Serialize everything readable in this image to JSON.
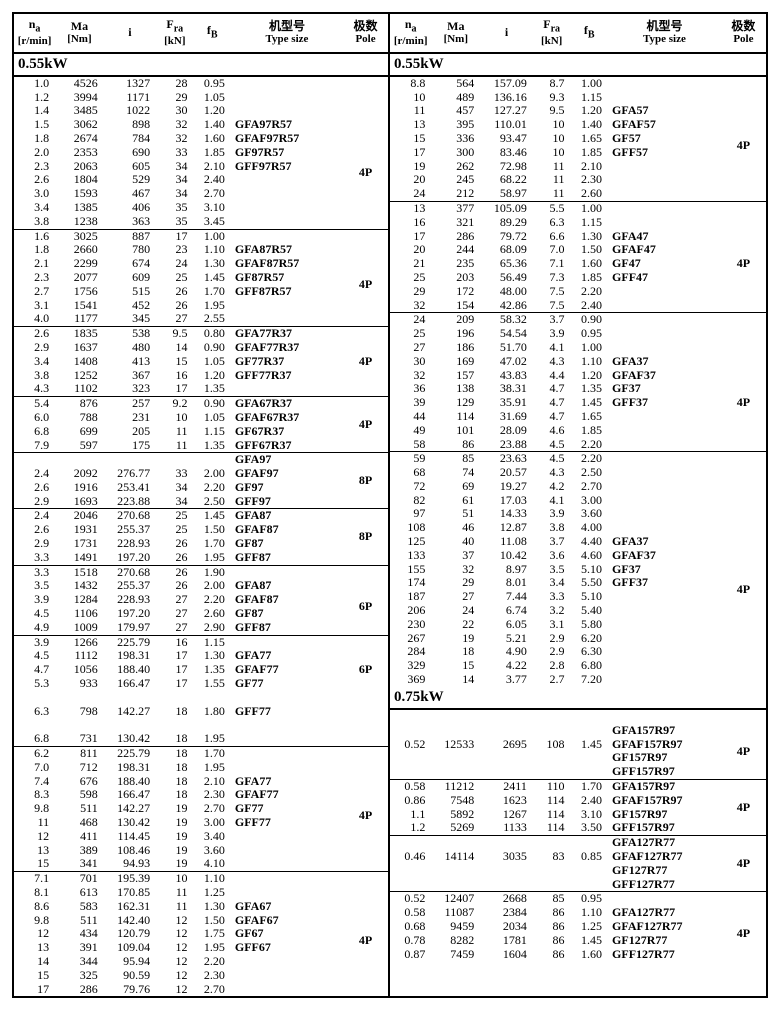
{
  "headers": {
    "na": {
      "sym": "n",
      "sub": "a",
      "unit": "[r/min]"
    },
    "ma": {
      "sym": "Ma",
      "unit": "[Nm]"
    },
    "i": {
      "sym": "i"
    },
    "fra": {
      "sym": "F",
      "sub": "ra",
      "unit": "[kN]"
    },
    "fb": {
      "sym": "f",
      "sub": "B"
    },
    "ts": {
      "cn": "机型号",
      "en": "Type size"
    },
    "pole": {
      "cn": "极数",
      "en": "Pole"
    }
  },
  "left": [
    {
      "kw": "0.55kW"
    },
    {
      "na": "1.0",
      "ma": "4526",
      "i": "1327",
      "fra": "28",
      "fb": "0.95"
    },
    {
      "na": "1.2",
      "ma": "3994",
      "i": "1171",
      "fra": "29",
      "fb": "1.05"
    },
    {
      "na": "1.4",
      "ma": "3485",
      "i": "1022",
      "fra": "30",
      "fb": "1.20"
    },
    {
      "na": "1.5",
      "ma": "3062",
      "i": "898",
      "fra": "32",
      "fb": "1.40",
      "ts": "GFA97R57",
      "pole": "4P",
      "span": 8
    },
    {
      "na": "1.8",
      "ma": "2674",
      "i": "784",
      "fra": "32",
      "fb": "1.60",
      "ts": "GFAF97R57"
    },
    {
      "na": "2.0",
      "ma": "2353",
      "i": "690",
      "fra": "33",
      "fb": "1.85",
      "ts": "GF97R57"
    },
    {
      "na": "2.3",
      "ma": "2063",
      "i": "605",
      "fra": "34",
      "fb": "2.10",
      "ts": "GFF97R57"
    },
    {
      "na": "2.6",
      "ma": "1804",
      "i": "529",
      "fra": "34",
      "fb": "2.40"
    },
    {
      "na": "3.0",
      "ma": "1593",
      "i": "467",
      "fra": "34",
      "fb": "2.70"
    },
    {
      "na": "3.4",
      "ma": "1385",
      "i": "406",
      "fra": "35",
      "fb": "3.10"
    },
    {
      "na": "3.8",
      "ma": "1238",
      "i": "363",
      "fra": "35",
      "fb": "3.45"
    },
    {
      "sep": true,
      "na": "1.6",
      "ma": "3025",
      "i": "887",
      "fra": "17",
      "fb": "1.00"
    },
    {
      "na": "1.8",
      "ma": "2660",
      "i": "780",
      "fra": "23",
      "fb": "1.10",
      "ts": "GFA87R57",
      "pole": "4P",
      "span": 6
    },
    {
      "na": "2.1",
      "ma": "2299",
      "i": "674",
      "fra": "24",
      "fb": "1.30",
      "ts": "GFAF87R57"
    },
    {
      "na": "2.3",
      "ma": "2077",
      "i": "609",
      "fra": "25",
      "fb": "1.45",
      "ts": "GF87R57"
    },
    {
      "na": "2.7",
      "ma": "1756",
      "i": "515",
      "fra": "26",
      "fb": "1.70",
      "ts": "GFF87R57"
    },
    {
      "na": "3.1",
      "ma": "1541",
      "i": "452",
      "fra": "26",
      "fb": "1.95"
    },
    {
      "na": "4.0",
      "ma": "1177",
      "i": "345",
      "fra": "27",
      "fb": "2.55"
    },
    {
      "sep": true,
      "na": "2.6",
      "ma": "1835",
      "i": "538",
      "fra": "9.5",
      "fb": "0.80",
      "ts": "GFA77R37",
      "pole": "4P",
      "span": 5
    },
    {
      "na": "2.9",
      "ma": "1637",
      "i": "480",
      "fra": "14",
      "fb": "0.90",
      "ts": "GFAF77R37"
    },
    {
      "na": "3.4",
      "ma": "1408",
      "i": "413",
      "fra": "15",
      "fb": "1.05",
      "ts": "GF77R37"
    },
    {
      "na": "3.8",
      "ma": "1252",
      "i": "367",
      "fra": "16",
      "fb": "1.20",
      "ts": "GFF77R37"
    },
    {
      "na": "4.3",
      "ma": "1102",
      "i": "323",
      "fra": "17",
      "fb": "1.35"
    },
    {
      "sep": true,
      "na": "5.4",
      "ma": "876",
      "i": "257",
      "fra": "9.2",
      "fb": "0.90",
      "ts": "GFA67R37",
      "pole": "4P",
      "span": 4
    },
    {
      "na": "6.0",
      "ma": "788",
      "i": "231",
      "fra": "10",
      "fb": "1.05",
      "ts": "GFAF67R37"
    },
    {
      "na": "6.8",
      "ma": "699",
      "i": "205",
      "fra": "11",
      "fb": "1.15",
      "ts": "GF67R37"
    },
    {
      "na": "7.9",
      "ma": "597",
      "i": "175",
      "fra": "11",
      "fb": "1.35",
      "ts": "GFF67R37"
    },
    {
      "sep": true,
      "ts": "GFA97",
      "pole": "8P",
      "span": 4
    },
    {
      "na": "2.4",
      "ma": "2092",
      "i": "276.77",
      "fra": "33",
      "fb": "2.00",
      "ts": "GFAF97"
    },
    {
      "na": "2.6",
      "ma": "1916",
      "i": "253.41",
      "fra": "34",
      "fb": "2.20",
      "ts": "GF97"
    },
    {
      "na": "2.9",
      "ma": "1693",
      "i": "223.88",
      "fra": "34",
      "fb": "2.50",
      "ts": "GFF97"
    },
    {
      "sep": true,
      "na": "2.4",
      "ma": "2046",
      "i": "270.68",
      "fra": "25",
      "fb": "1.45",
      "ts": "GFA87",
      "pole": "8P",
      "span": 4
    },
    {
      "na": "2.6",
      "ma": "1931",
      "i": "255.37",
      "fra": "25",
      "fb": "1.50",
      "ts": "GFAF87"
    },
    {
      "na": "2.9",
      "ma": "1731",
      "i": "228.93",
      "fra": "26",
      "fb": "1.70",
      "ts": "GF87"
    },
    {
      "na": "3.3",
      "ma": "1491",
      "i": "197.20",
      "fra": "26",
      "fb": "1.95",
      "ts": "GFF87"
    },
    {
      "sep": true,
      "na": "3.3",
      "ma": "1518",
      "i": "270.68",
      "fra": "26",
      "fb": "1.90"
    },
    {
      "na": "3.5",
      "ma": "1432",
      "i": "255.37",
      "fra": "26",
      "fb": "2.00",
      "ts": "GFA87",
      "pole": "6P",
      "span": 4
    },
    {
      "na": "3.9",
      "ma": "1284",
      "i": "228.93",
      "fra": "27",
      "fb": "2.20",
      "ts": "GFAF87"
    },
    {
      "na": "4.5",
      "ma": "1106",
      "i": "197.20",
      "fra": "27",
      "fb": "2.60",
      "ts": "GF87"
    },
    {
      "na": "4.9",
      "ma": "1009",
      "i": "179.97",
      "fra": "27",
      "fb": "2.90",
      "ts": "GFF87"
    },
    {
      "sep": true,
      "na": "3.9",
      "ma": "1266",
      "i": "225.79",
      "fra": "16",
      "fb": "1.15"
    },
    {
      "na": "4.5",
      "ma": "1112",
      "i": "198.31",
      "fra": "17",
      "fb": "1.30",
      "ts": "GFA77",
      "pole": "6P",
      "span": 3
    },
    {
      "na": "4.7",
      "ma": "1056",
      "i": "188.40",
      "fra": "17",
      "fb": "1.35",
      "ts": "GFAF77"
    },
    {
      "na": "5.3",
      "ma": "933",
      "i": "166.47",
      "fra": "17",
      "fb": "1.55",
      "ts": "GF77"
    },
    {
      "blank": true
    },
    {
      "na": "6.3",
      "ma": "798",
      "i": "142.27",
      "fra": "18",
      "fb": "1.80",
      "ts": "GFF77"
    },
    {
      "blank": true
    },
    {
      "na": "6.8",
      "ma": "731",
      "i": "130.42",
      "fra": "18",
      "fb": "1.95"
    },
    {
      "sep": true,
      "na": "6.2",
      "ma": "811",
      "i": "225.79",
      "fra": "18",
      "fb": "1.70"
    },
    {
      "na": "7.0",
      "ma": "712",
      "i": "198.31",
      "fra": "18",
      "fb": "1.95"
    },
    {
      "na": "7.4",
      "ma": "676",
      "i": "188.40",
      "fra": "18",
      "fb": "2.10",
      "ts": "GFA77",
      "pole": "4P",
      "span": 6
    },
    {
      "na": "8.3",
      "ma": "598",
      "i": "166.47",
      "fra": "18",
      "fb": "2.30",
      "ts": "GFAF77"
    },
    {
      "na": "9.8",
      "ma": "511",
      "i": "142.27",
      "fra": "19",
      "fb": "2.70",
      "ts": "GF77"
    },
    {
      "na": "11",
      "ma": "468",
      "i": "130.42",
      "fra": "19",
      "fb": "3.00",
      "ts": "GFF77"
    },
    {
      "na": "12",
      "ma": "411",
      "i": "114.45",
      "fra": "19",
      "fb": "3.40"
    },
    {
      "na": "13",
      "ma": "389",
      "i": "108.46",
      "fra": "19",
      "fb": "3.60"
    },
    {
      "na": "15",
      "ma": "341",
      "i": "94.93",
      "fra": "19",
      "fb": "4.10"
    },
    {
      "sep": true,
      "na": "7.1",
      "ma": "701",
      "i": "195.39",
      "fra": "10",
      "fb": "1.10"
    },
    {
      "na": "8.1",
      "ma": "613",
      "i": "170.85",
      "fra": "11",
      "fb": "1.25"
    },
    {
      "na": "8.6",
      "ma": "583",
      "i": "162.31",
      "fra": "11",
      "fb": "1.30",
      "ts": "GFA67",
      "pole": "4P",
      "span": 6
    },
    {
      "na": "9.8",
      "ma": "511",
      "i": "142.40",
      "fra": "12",
      "fb": "1.50",
      "ts": "GFAF67"
    },
    {
      "na": "12",
      "ma": "434",
      "i": "120.79",
      "fra": "12",
      "fb": "1.75",
      "ts": "GF67"
    },
    {
      "na": "13",
      "ma": "391",
      "i": "109.04",
      "fra": "12",
      "fb": "1.95",
      "ts": "GFF67"
    },
    {
      "na": "14",
      "ma": "344",
      "i": "95.94",
      "fra": "12",
      "fb": "2.20"
    },
    {
      "na": "15",
      "ma": "325",
      "i": "90.59",
      "fra": "12",
      "fb": "2.30"
    },
    {
      "na": "17",
      "ma": "286",
      "i": "79.76",
      "fra": "12",
      "fb": "2.70"
    }
  ],
  "right": [
    {
      "kw": "0.55kW"
    },
    {
      "na": "8.8",
      "ma": "564",
      "i": "157.09",
      "fra": "8.7",
      "fb": "1.00"
    },
    {
      "na": "10",
      "ma": "489",
      "i": "136.16",
      "fra": "9.3",
      "fb": "1.15"
    },
    {
      "na": "11",
      "ma": "457",
      "i": "127.27",
      "fra": "9.5",
      "fb": "1.20",
      "ts": "GFA57",
      "pole": "4P",
      "span": 6
    },
    {
      "na": "13",
      "ma": "395",
      "i": "110.01",
      "fra": "10",
      "fb": "1.40",
      "ts": "GFAF57"
    },
    {
      "na": "15",
      "ma": "336",
      "i": "93.47",
      "fra": "10",
      "fb": "1.65",
      "ts": "GF57"
    },
    {
      "na": "17",
      "ma": "300",
      "i": "83.46",
      "fra": "10",
      "fb": "1.85",
      "ts": "GFF57"
    },
    {
      "na": "19",
      "ma": "262",
      "i": "72.98",
      "fra": "11",
      "fb": "2.10"
    },
    {
      "na": "20",
      "ma": "245",
      "i": "68.22",
      "fra": "11",
      "fb": "2.30"
    },
    {
      "na": "24",
      "ma": "212",
      "i": "58.97",
      "fra": "11",
      "fb": "2.60"
    },
    {
      "sep": true,
      "na": "13",
      "ma": "377",
      "i": "105.09",
      "fra": "5.5",
      "fb": "1.00"
    },
    {
      "na": "16",
      "ma": "321",
      "i": "89.29",
      "fra": "6.3",
      "fb": "1.15"
    },
    {
      "na": "17",
      "ma": "286",
      "i": "79.72",
      "fra": "6.6",
      "fb": "1.30",
      "ts": "GFA47",
      "pole": "4P",
      "span": 5
    },
    {
      "na": "20",
      "ma": "244",
      "i": "68.09",
      "fra": "7.0",
      "fb": "1.50",
      "ts": "GFAF47"
    },
    {
      "na": "21",
      "ma": "235",
      "i": "65.36",
      "fra": "7.1",
      "fb": "1.60",
      "ts": "GF47"
    },
    {
      "na": "25",
      "ma": "203",
      "i": "56.49",
      "fra": "7.3",
      "fb": "1.85",
      "ts": "GFF47"
    },
    {
      "na": "29",
      "ma": "172",
      "i": "48.00",
      "fra": "7.5",
      "fb": "2.20"
    },
    {
      "na": "32",
      "ma": "154",
      "i": "42.86",
      "fra": "7.5",
      "fb": "2.40"
    },
    {
      "sep": true,
      "na": "24",
      "ma": "209",
      "i": "58.32",
      "fra": "3.7",
      "fb": "0.90"
    },
    {
      "na": "25",
      "ma": "196",
      "i": "54.54",
      "fra": "3.9",
      "fb": "0.95"
    },
    {
      "na": "27",
      "ma": "186",
      "i": "51.70",
      "fra": "4.1",
      "fb": "1.00"
    },
    {
      "na": "30",
      "ma": "169",
      "i": "47.02",
      "fra": "4.3",
      "fb": "1.10",
      "ts": "GFA37",
      "pole": "4P",
      "span": 7
    },
    {
      "na": "32",
      "ma": "157",
      "i": "43.83",
      "fra": "4.4",
      "fb": "1.20",
      "ts": "GFAF37"
    },
    {
      "na": "36",
      "ma": "138",
      "i": "38.31",
      "fra": "4.7",
      "fb": "1.35",
      "ts": "GF37"
    },
    {
      "na": "39",
      "ma": "129",
      "i": "35.91",
      "fra": "4.7",
      "fb": "1.45",
      "ts": "GFF37"
    },
    {
      "na": "44",
      "ma": "114",
      "i": "31.69",
      "fra": "4.7",
      "fb": "1.65"
    },
    {
      "na": "49",
      "ma": "101",
      "i": "28.09",
      "fra": "4.6",
      "fb": "1.85"
    },
    {
      "na": "58",
      "ma": "86",
      "i": "23.88",
      "fra": "4.5",
      "fb": "2.20"
    },
    {
      "sep": true,
      "na": "59",
      "ma": "85",
      "i": "23.63",
      "fra": "4.5",
      "fb": "2.20"
    },
    {
      "na": "68",
      "ma": "74",
      "i": "20.57",
      "fra": "4.3",
      "fb": "2.50"
    },
    {
      "na": "72",
      "ma": "69",
      "i": "19.27",
      "fra": "4.2",
      "fb": "2.70"
    },
    {
      "na": "82",
      "ma": "61",
      "i": "17.03",
      "fra": "4.1",
      "fb": "3.00"
    },
    {
      "na": "97",
      "ma": "51",
      "i": "14.33",
      "fra": "3.9",
      "fb": "3.60"
    },
    {
      "na": "108",
      "ma": "46",
      "i": "12.87",
      "fra": "3.8",
      "fb": "4.00"
    },
    {
      "na": "125",
      "ma": "40",
      "i": "11.08",
      "fra": "3.7",
      "fb": "4.40",
      "ts": "GFA37",
      "pole": "4P",
      "span": 8
    },
    {
      "na": "133",
      "ma": "37",
      "i": "10.42",
      "fra": "3.6",
      "fb": "4.60",
      "ts": "GFAF37"
    },
    {
      "na": "155",
      "ma": "32",
      "i": "8.97",
      "fra": "3.5",
      "fb": "5.10",
      "ts": "GF37"
    },
    {
      "na": "174",
      "ma": "29",
      "i": "8.01",
      "fra": "3.4",
      "fb": "5.50",
      "ts": "GFF37"
    },
    {
      "na": "187",
      "ma": "27",
      "i": "7.44",
      "fra": "3.3",
      "fb": "5.10"
    },
    {
      "na": "206",
      "ma": "24",
      "i": "6.74",
      "fra": "3.2",
      "fb": "5.40"
    },
    {
      "na": "230",
      "ma": "22",
      "i": "6.05",
      "fra": "3.1",
      "fb": "5.80"
    },
    {
      "na": "267",
      "ma": "19",
      "i": "5.21",
      "fra": "2.9",
      "fb": "6.20"
    },
    {
      "na": "284",
      "ma": "18",
      "i": "4.90",
      "fra": "2.9",
      "fb": "6.30"
    },
    {
      "na": "329",
      "ma": "15",
      "i": "4.22",
      "fra": "2.8",
      "fb": "6.80"
    },
    {
      "na": "369",
      "ma": "14",
      "i": "3.77",
      "fra": "2.7",
      "fb": "7.20"
    },
    {
      "kw": "0.75kW"
    },
    {
      "blank": true
    },
    {
      "ts": "GFA157R97",
      "pole": "4P",
      "span": 4
    },
    {
      "na": "0.52",
      "ma": "12533",
      "i": "2695",
      "fra": "108",
      "fb": "1.45",
      "ts": "GFAF157R97"
    },
    {
      "ts": "GF157R97"
    },
    {
      "ts": "GFF157R97"
    },
    {
      "sep": true,
      "na": "0.58",
      "ma": "11212",
      "i": "2411",
      "fra": "110",
      "fb": "1.70",
      "ts": "GFA157R97",
      "pole": "4P",
      "span": 4
    },
    {
      "na": "0.86",
      "ma": "7548",
      "i": "1623",
      "fra": "114",
      "fb": "2.40",
      "ts": "GFAF157R97"
    },
    {
      "na": "1.1",
      "ma": "5892",
      "i": "1267",
      "fra": "114",
      "fb": "3.10",
      "ts": "GF157R97"
    },
    {
      "na": "1.2",
      "ma": "5269",
      "i": "1133",
      "fra": "114",
      "fb": "3.50",
      "ts": "GFF157R97"
    },
    {
      "sep": true,
      "ts": "GFA127R77",
      "pole": "4P",
      "span": 4
    },
    {
      "na": "0.46",
      "ma": "14114",
      "i": "3035",
      "fra": "83",
      "fb": "0.85",
      "ts": "GFAF127R77"
    },
    {
      "ts": "GF127R77"
    },
    {
      "ts": "GFF127R77"
    },
    {
      "sep": true,
      "na": "0.52",
      "ma": "12407",
      "i": "2668",
      "fra": "85",
      "fb": "0.95"
    },
    {
      "na": "0.58",
      "ma": "11087",
      "i": "2384",
      "fra": "86",
      "fb": "1.10",
      "ts": "GFA127R77",
      "pole": "4P",
      "span": 4
    },
    {
      "na": "0.68",
      "ma": "9459",
      "i": "2034",
      "fra": "86",
      "fb": "1.25",
      "ts": "GFAF127R77"
    },
    {
      "na": "0.78",
      "ma": "8282",
      "i": "1781",
      "fra": "86",
      "fb": "1.45",
      "ts": "GF127R77"
    },
    {
      "na": "0.87",
      "ma": "7459",
      "i": "1604",
      "fra": "86",
      "fb": "1.60",
      "ts": "GFF127R77"
    }
  ]
}
